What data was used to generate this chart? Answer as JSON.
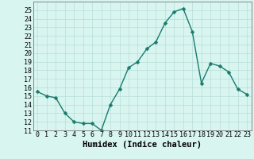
{
  "x": [
    0,
    1,
    2,
    3,
    4,
    5,
    6,
    7,
    8,
    9,
    10,
    11,
    12,
    13,
    14,
    15,
    16,
    17,
    18,
    19,
    20,
    21,
    22,
    23
  ],
  "y": [
    15.5,
    15.0,
    14.8,
    13.0,
    12.0,
    11.8,
    11.8,
    11.0,
    14.0,
    15.8,
    18.3,
    19.0,
    20.5,
    21.3,
    23.5,
    24.8,
    25.2,
    22.5,
    16.5,
    18.8,
    18.5,
    17.8,
    15.8,
    15.2
  ],
  "line_color": "#1a7a6e",
  "marker_color": "#1a7a6e",
  "bg_color": "#d8f5f0",
  "grid_color": "#b8ddd8",
  "xlabel": "Humidex (Indice chaleur)",
  "ylim": [
    11,
    26
  ],
  "xlim": [
    -0.5,
    23.5
  ],
  "yticks": [
    11,
    12,
    13,
    14,
    15,
    16,
    17,
    18,
    19,
    20,
    21,
    22,
    23,
    24,
    25
  ],
  "xticks": [
    0,
    1,
    2,
    3,
    4,
    5,
    6,
    7,
    8,
    9,
    10,
    11,
    12,
    13,
    14,
    15,
    16,
    17,
    18,
    19,
    20,
    21,
    22,
    23
  ],
  "xlabel_fontsize": 7.5,
  "tick_fontsize": 6.0,
  "line_width": 1.0,
  "marker_size": 2.5
}
